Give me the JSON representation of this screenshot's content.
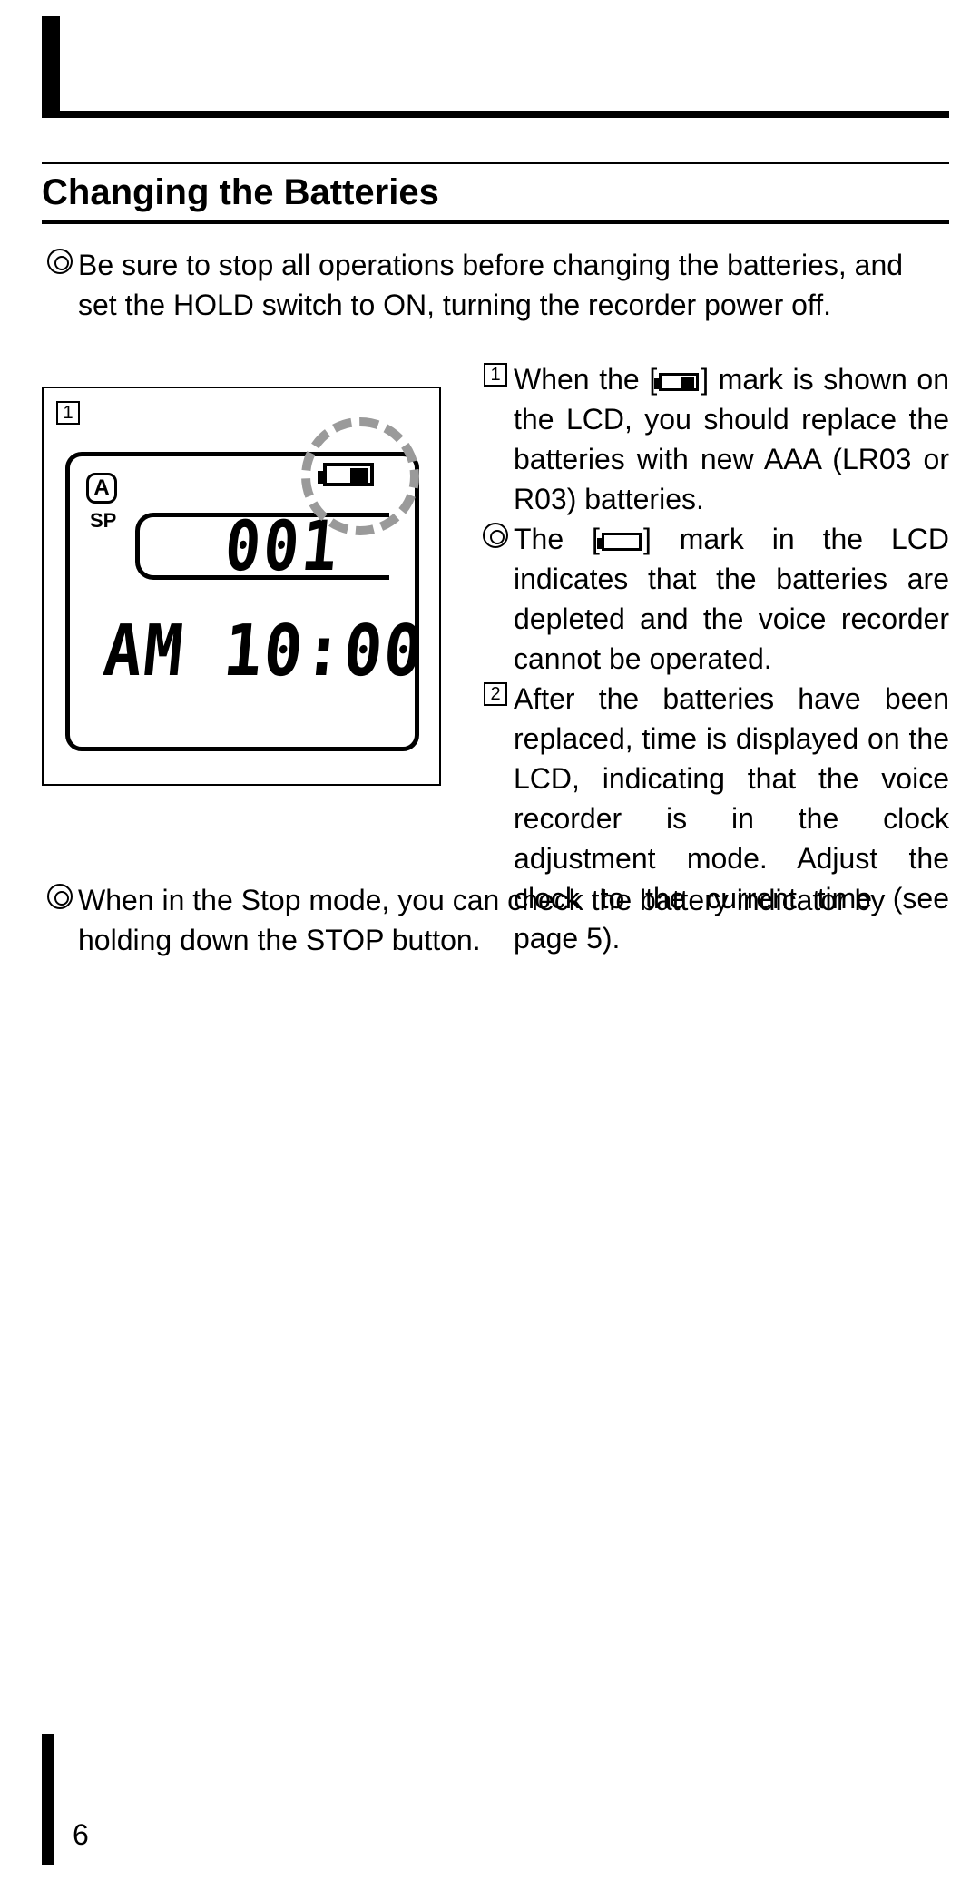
{
  "section_title": "Changing the Batteries",
  "intro": "Be sure to stop all operations before changing the batteries, and set the HOLD switch to ON, turning the recorder power off.",
  "lcd": {
    "callout": "1",
    "folder": "A",
    "mode": "SP",
    "counter": "001",
    "time": "AM  10:00"
  },
  "steps": {
    "one": {
      "num": "1",
      "before": "When the [",
      "after": "] mark is shown on the LCD, you should replace the batteries with new AAA (LR03 or R03) batteries."
    },
    "depleted": {
      "before": "The [",
      "after": "] mark in the LCD indicates that the batteries are depleted and the voice recorder cannot be operated."
    },
    "two": {
      "num": "2",
      "text": "After the batteries have been replaced, time is displayed on the LCD, indicating that the voice recorder is in the clock adjustment mode. Adjust the clock to the current time (see page 5)."
    }
  },
  "footnote": "When in the Stop mode, you can check the battery indicator by holding down the STOP button.",
  "page_number": "6",
  "colors": {
    "text": "#000000",
    "bg": "#ffffff",
    "dashed": "#9a9a9a"
  }
}
